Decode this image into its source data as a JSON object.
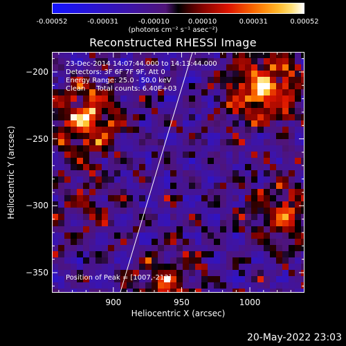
{
  "colorbar": {
    "ticks": [
      "-0.00052",
      "-0.00031",
      "-0.00010",
      "0.00010",
      "0.00031",
      "0.00052"
    ],
    "units": "(photons cm⁻² s⁻¹ asec⁻²)"
  },
  "chart_data": {
    "type": "heatmap",
    "title": "Reconstructed RHESSI Image",
    "xlabel": "Heliocentric X (arcsec)",
    "ylabel": "Heliocentric Y (arcsec)",
    "xlim": [
      855,
      1040
    ],
    "ylim": [
      -365,
      -185
    ],
    "x_ticks": [
      "900",
      "950",
      "1000"
    ],
    "y_ticks": [
      "-200",
      "-250",
      "-300",
      "-350"
    ],
    "colorbar_range": [
      -0.00052,
      0.00052
    ],
    "peak": [
      1007,
      -213
    ],
    "annotations": {
      "line1": "23-Dec-2014 14:07:44.000 to 14:13:44.000",
      "line2": "Detectors: 3F 6F 7F 9F, Att 0",
      "line3": "Energy Range: 25.0 - 50.0 keV",
      "line4": "Clean     Total counts: 6.40E+03",
      "peak_label": "Position of Peak = [1007,-213]"
    },
    "sources": [
      {
        "x": 1010,
        "y": -212,
        "strength": 1.0
      },
      {
        "x": 880,
        "y": -235,
        "strength": 0.85
      },
      {
        "x": 1025,
        "y": -308,
        "strength": 0.6
      },
      {
        "x": 938,
        "y": -360,
        "strength": 0.55
      },
      {
        "x": 880,
        "y": -300,
        "strength": 0.3
      }
    ],
    "limb_line": [
      [
        905,
        -365
      ],
      [
        958,
        -185
      ]
    ]
  },
  "footer": {
    "date": "20-May-2022 23:03"
  }
}
